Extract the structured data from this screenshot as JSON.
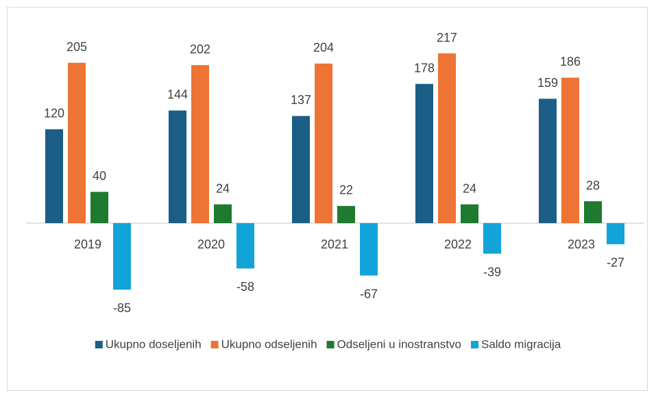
{
  "chart_data": {
    "type": "bar",
    "categories": [
      "2019",
      "2020",
      "2021",
      "2022",
      "2023"
    ],
    "series": [
      {
        "name": "Ukupno doseljenih",
        "color": "#1b5e86",
        "values": [
          120,
          144,
          137,
          178,
          159
        ]
      },
      {
        "name": "Ukupno odseljenih",
        "color": "#ed7434",
        "values": [
          205,
          202,
          204,
          217,
          186
        ]
      },
      {
        "name": "Odseljeni u inostranstvo",
        "color": "#1e7a2f",
        "values": [
          40,
          24,
          22,
          24,
          28
        ]
      },
      {
        "name": "Saldo migracija",
        "color": "#12a3d9",
        "values": [
          -85,
          -58,
          -67,
          -39,
          -27
        ]
      }
    ],
    "legend": "bottom"
  }
}
